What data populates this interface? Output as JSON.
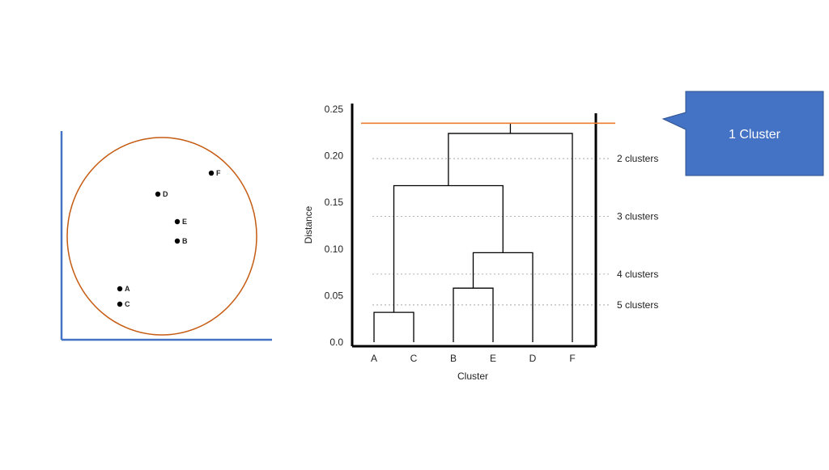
{
  "scatter": {
    "points": [
      {
        "label": "F"
      },
      {
        "label": "D"
      },
      {
        "label": "E"
      },
      {
        "label": "B"
      },
      {
        "label": "A"
      },
      {
        "label": "C"
      }
    ],
    "axis_color": "#4472c4",
    "circle_color": "#c55a11"
  },
  "dendrogram": {
    "y_axis_title": "Distance",
    "x_axis_title": "Cluster",
    "y_ticks": [
      "0.0",
      "0.05",
      "0.10",
      "0.15",
      "0.20",
      "0.25"
    ],
    "ylim": [
      0,
      0.25
    ],
    "leaves": [
      "A",
      "C",
      "B",
      "E",
      "D",
      "F"
    ],
    "merges": [
      {
        "left": "A",
        "right": "C",
        "height": 0.032
      },
      {
        "left": "B",
        "right": "E",
        "height": 0.058
      },
      {
        "left": "BE",
        "right": "D",
        "height": 0.096
      },
      {
        "left": "AC",
        "right": "BED",
        "height": 0.168
      },
      {
        "left": "ACBED",
        "right": "F",
        "height": 0.224
      }
    ],
    "root_height": 0.235,
    "cut_lines": [
      {
        "label": "2 clusters",
        "height": 0.197
      },
      {
        "label": "3 clusters",
        "height": 0.135
      },
      {
        "label": "4 clusters",
        "height": 0.073
      },
      {
        "label": "5 clusters",
        "height": 0.04
      }
    ],
    "highlight_line_height": 0.235,
    "highlight_color": "#ed7d31"
  },
  "callout": {
    "text": "1 Cluster",
    "color": "#4472c4"
  }
}
